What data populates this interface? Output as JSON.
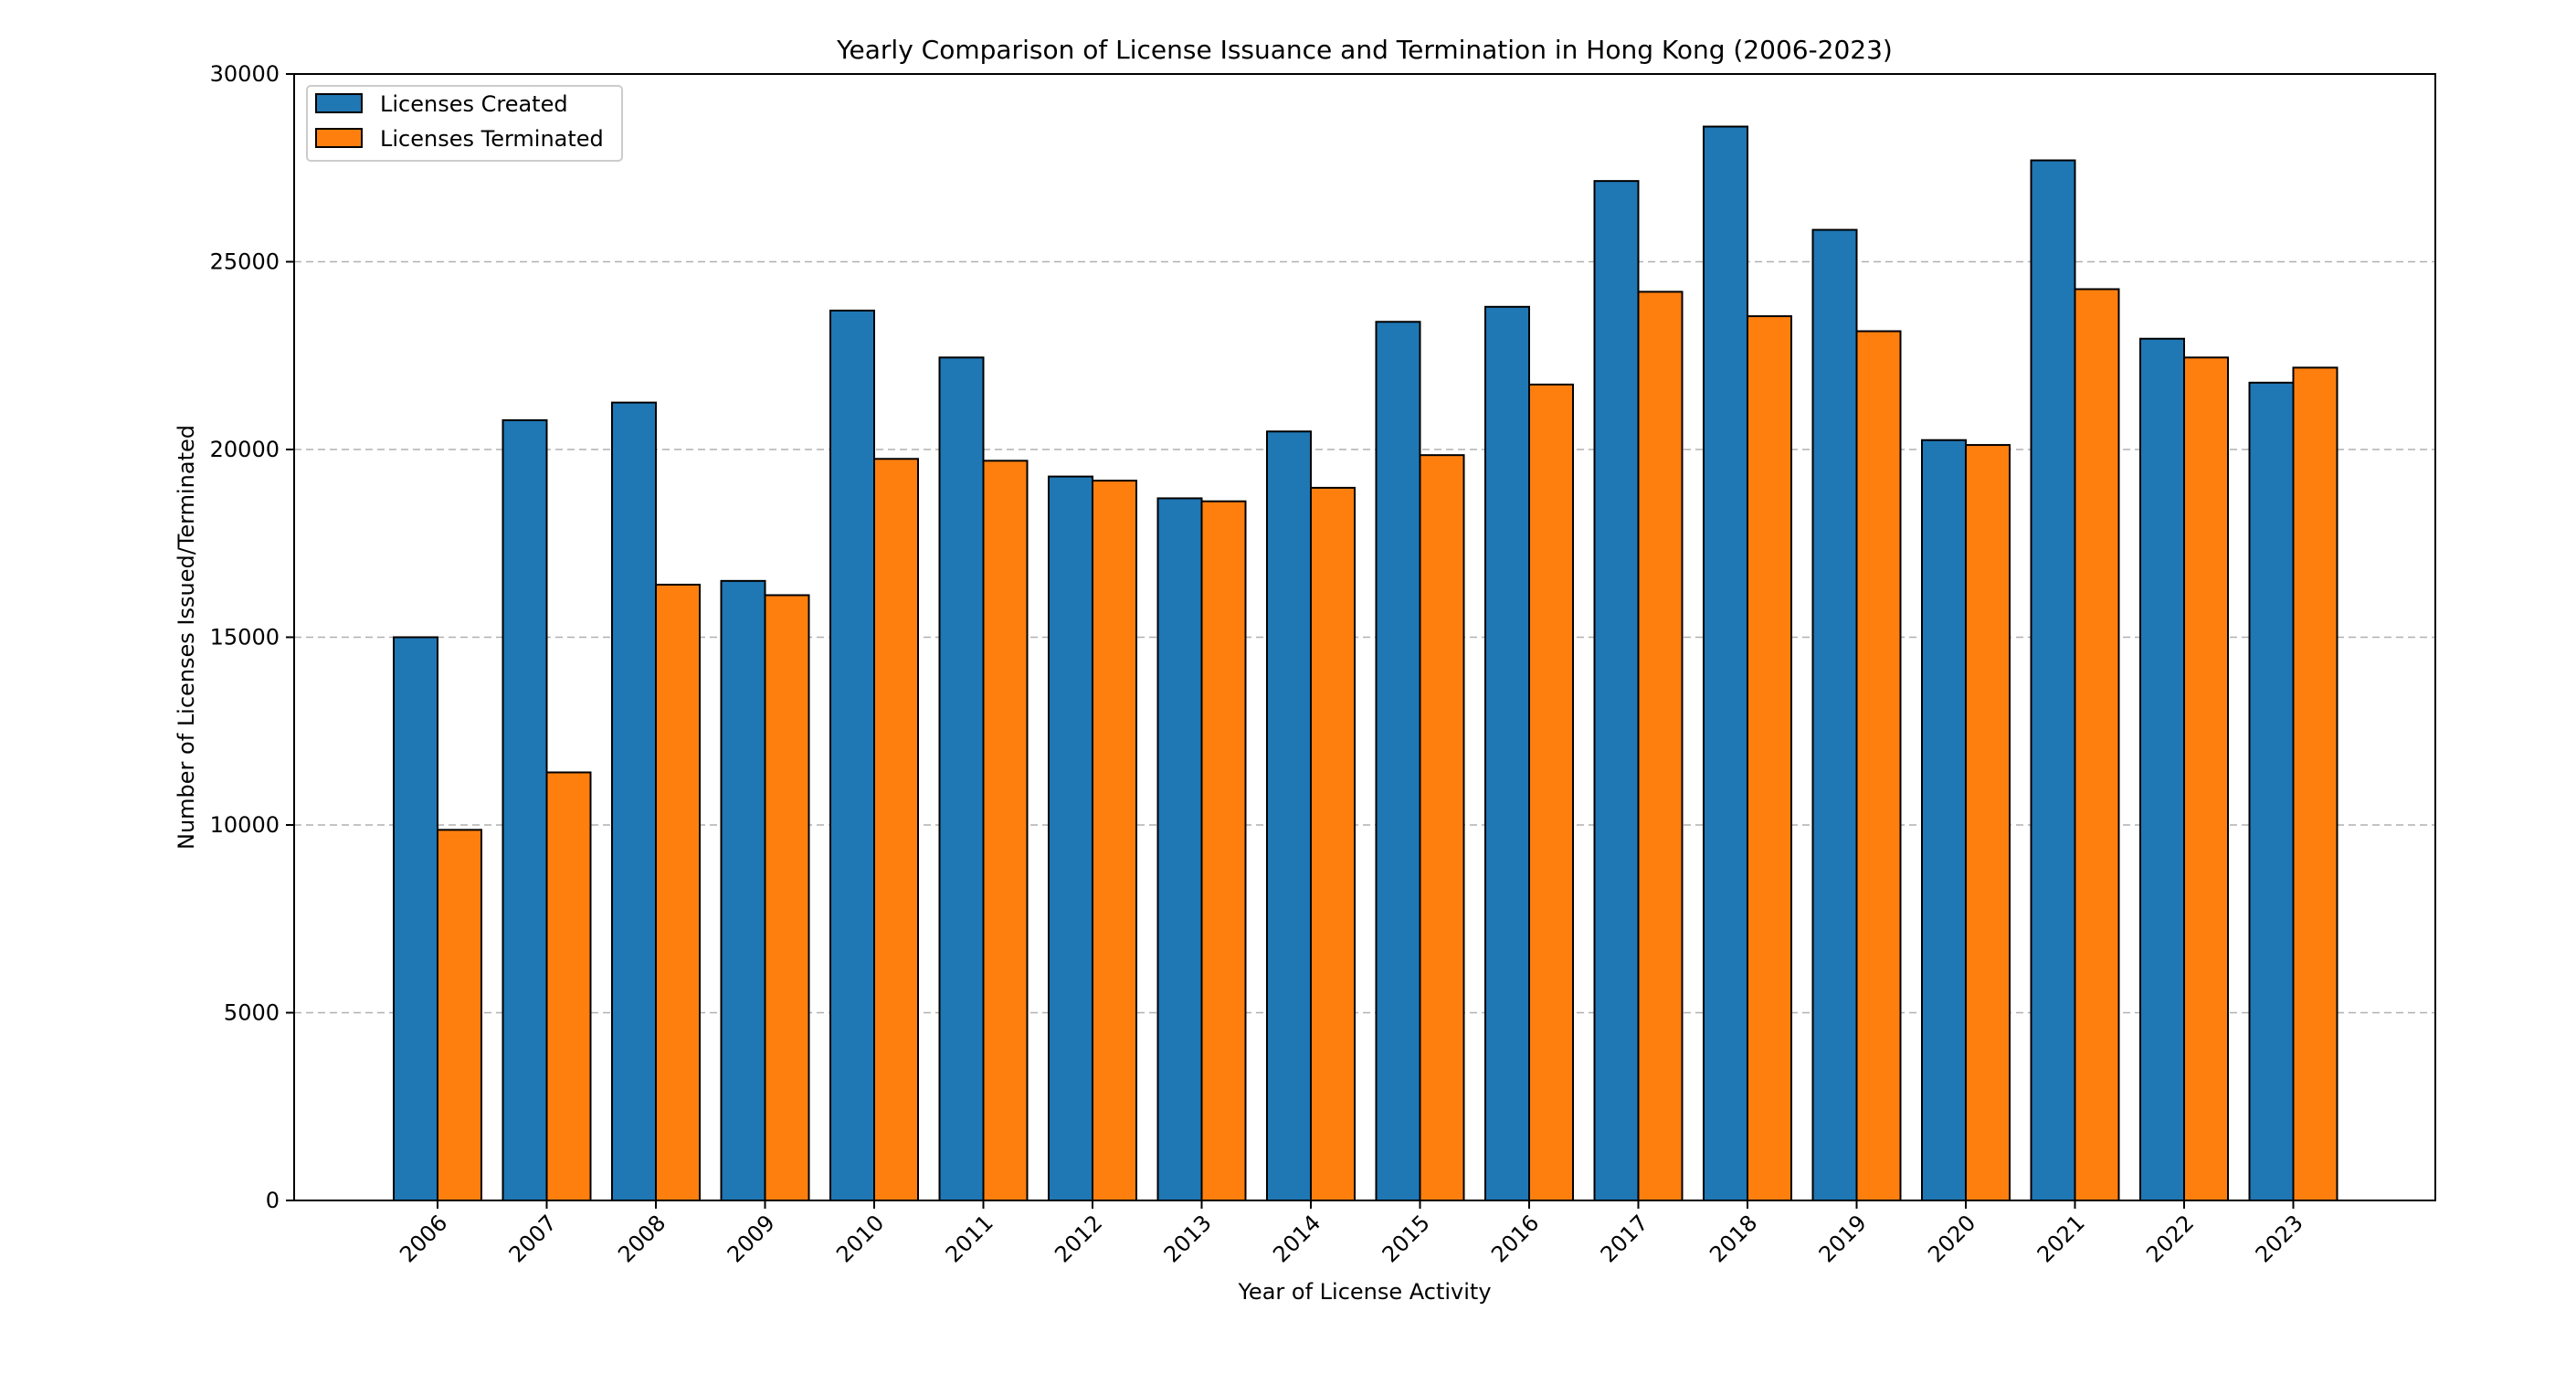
{
  "chart_data": {
    "type": "bar",
    "title": "Yearly Comparison of License Issuance and Termination in Hong Kong (2006-2023)",
    "xlabel": "Year of License Activity",
    "ylabel": "Number of Licenses Issued/Terminated",
    "ylim": [
      0,
      30000
    ],
    "yticks": [
      0,
      5000,
      10000,
      15000,
      20000,
      25000,
      30000
    ],
    "grid": "y-dashed",
    "legend_position": "top-left",
    "categories": [
      "2006",
      "2007",
      "2008",
      "2009",
      "2010",
      "2011",
      "2012",
      "2013",
      "2014",
      "2015",
      "2016",
      "2017",
      "2018",
      "2019",
      "2020",
      "2021",
      "2022",
      "2023"
    ],
    "series": [
      {
        "name": "Licenses Created",
        "color": "#1f77b4",
        "values": [
          15000,
          20780,
          21250,
          16500,
          23700,
          22450,
          19280,
          18700,
          20480,
          23400,
          23800,
          27150,
          28600,
          25850,
          20250,
          27700,
          22950,
          21780
        ]
      },
      {
        "name": "Licenses Terminated",
        "color": "#ff7f0e",
        "values": [
          9870,
          11400,
          16400,
          16120,
          19750,
          19700,
          19170,
          18620,
          18980,
          19850,
          21730,
          24200,
          23550,
          23150,
          20120,
          24270,
          22450,
          22180
        ]
      }
    ]
  }
}
